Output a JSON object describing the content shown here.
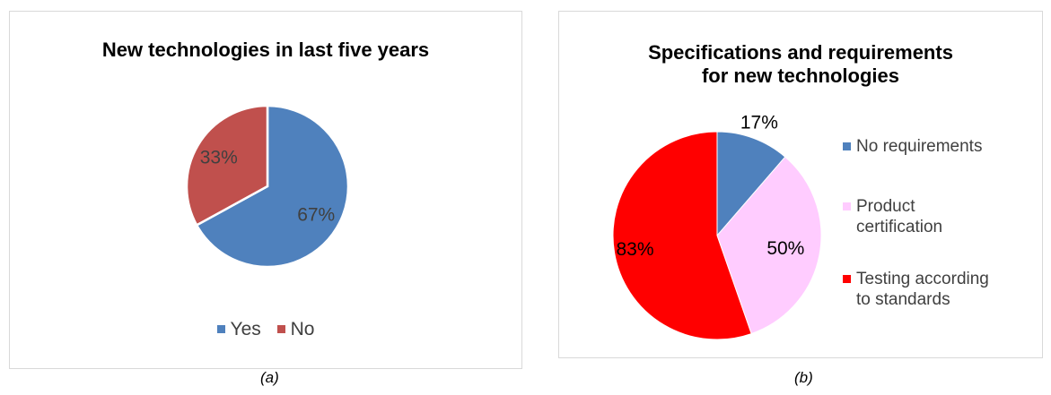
{
  "captions": {
    "a": "(a)",
    "b": "(b)"
  },
  "chart_data": [
    {
      "type": "pie",
      "title": "New technologies in last five years",
      "categories": [
        "Yes",
        "No"
      ],
      "values": [
        67,
        33
      ],
      "data_labels": [
        "67%",
        "33%"
      ],
      "colors": [
        "#4f81bd",
        "#c0504d"
      ],
      "legend_position": "bottom",
      "legend": [
        "Yes",
        "No"
      ]
    },
    {
      "type": "pie",
      "title": "Specifications and requirements for new technologies",
      "title_lines": [
        "Specifications and requirements",
        "for new technologies"
      ],
      "categories": [
        "No requirements",
        "Product certification",
        "Testing according to standards"
      ],
      "values": [
        17,
        50,
        83
      ],
      "data_labels": [
        "17%",
        "50%",
        "83%"
      ],
      "colors": [
        "#4f81bd",
        "#ffccff",
        "#ff0000"
      ],
      "legend_position": "right",
      "legend": [
        {
          "lines": [
            "No requirements"
          ]
        },
        {
          "lines": [
            "Product",
            "certification"
          ]
        },
        {
          "lines": [
            "Testing according",
            "to standards"
          ]
        }
      ]
    }
  ]
}
